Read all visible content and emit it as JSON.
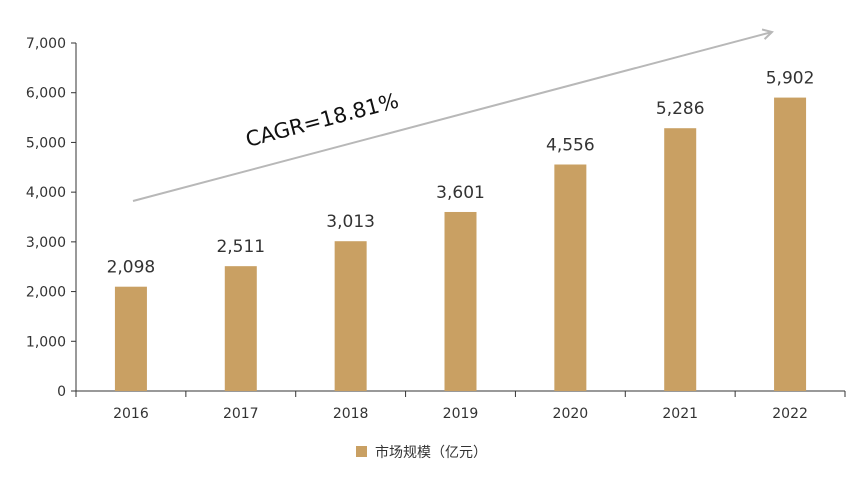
{
  "chart_data": {
    "type": "bar",
    "categories": [
      "2016",
      "2017",
      "2018",
      "2019",
      "2020",
      "2021",
      "2022"
    ],
    "series": [
      {
        "name": "市场规模（亿元）",
        "values": [
          2098,
          2511,
          3013,
          3601,
          4556,
          5286,
          5902
        ],
        "labels": [
          "2,098",
          "2,511",
          "3,013",
          "3,601",
          "4,556",
          "5,286",
          "5,902"
        ],
        "color": "#c9a063"
      }
    ],
    "ylim": [
      0,
      7000
    ],
    "yticks": [
      0,
      1000,
      2000,
      3000,
      4000,
      5000,
      6000,
      7000
    ],
    "ytick_labels": [
      "0",
      "1,000",
      "2,000",
      "3,000",
      "4,000",
      "5,000",
      "6,000",
      "7,000"
    ],
    "grid": false,
    "legend_position": "bottom-center",
    "annotation": {
      "text": "CAGR=18.81%",
      "arrow": "trend arrow rising from 2016 to 2022",
      "arrow_color": "#b8b8b8"
    },
    "axis_color": "#333333"
  }
}
